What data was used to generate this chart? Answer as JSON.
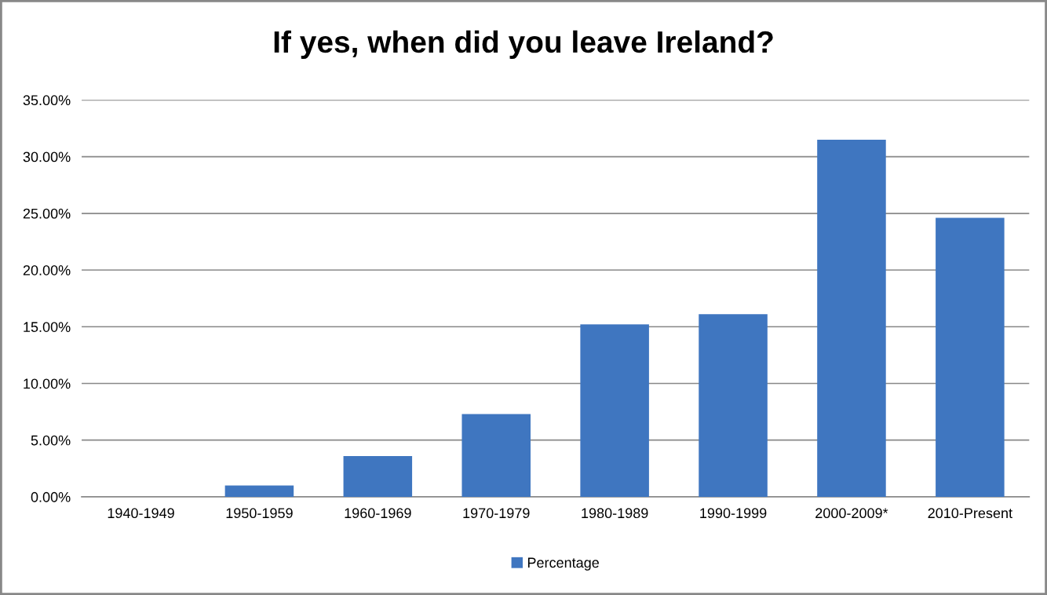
{
  "chart_data": {
    "type": "bar",
    "title": "If yes, when did you leave Ireland?",
    "categories": [
      "1940-1949",
      "1950-1959",
      "1960-1969",
      "1970-1979",
      "1980-1989",
      "1990-1999",
      "2000-2009*",
      "2010-Present"
    ],
    "series": [
      {
        "name": "Percentage",
        "color": "#3f76c0",
        "values": [
          0,
          1.0,
          3.6,
          7.3,
          15.2,
          16.1,
          31.5,
          24.6
        ]
      }
    ],
    "ylim": [
      0,
      35
    ],
    "yticks": [
      {
        "value": 0,
        "label": "0.00%"
      },
      {
        "value": 5,
        "label": "5.00%"
      },
      {
        "value": 10,
        "label": "10.00%"
      },
      {
        "value": 15,
        "label": "15.00%"
      },
      {
        "value": 20,
        "label": "20.00%"
      },
      {
        "value": 25,
        "label": "25.00%"
      },
      {
        "value": 30,
        "label": "30.00%"
      },
      {
        "value": 35,
        "label": "35.00%"
      }
    ],
    "grid": "y",
    "legend": "bottom"
  }
}
